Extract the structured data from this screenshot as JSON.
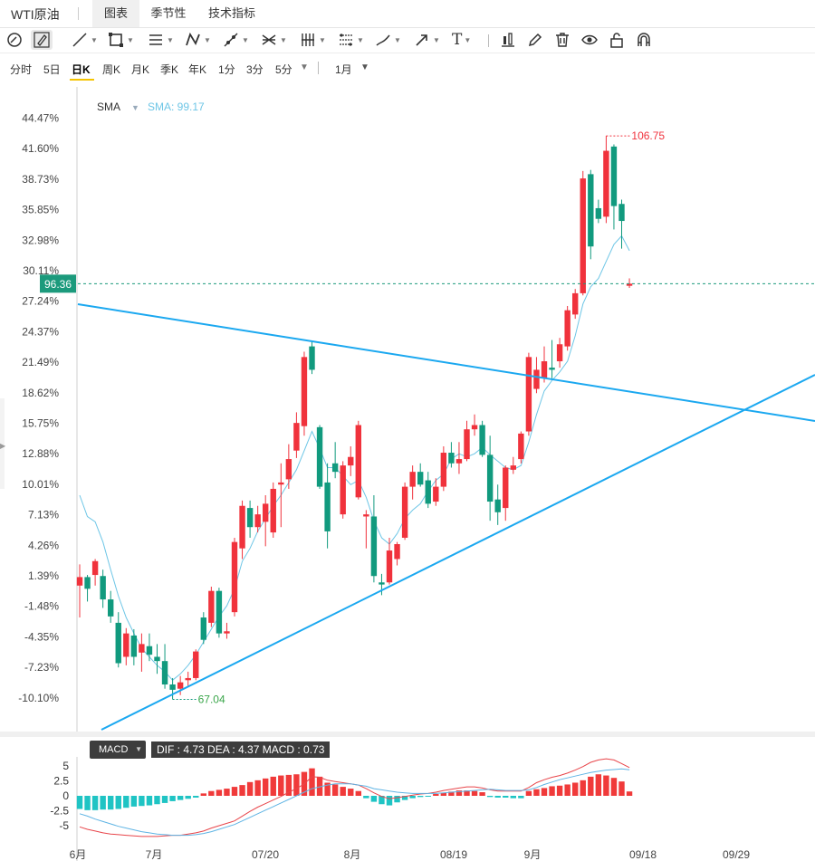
{
  "header": {
    "title": "WTI原油",
    "tabs": [
      {
        "label": "图表",
        "active": true
      },
      {
        "label": "季节性",
        "active": false
      },
      {
        "label": "技术指标",
        "active": false
      }
    ]
  },
  "toolbar": {
    "tools": [
      {
        "icon": "magnet-circle-icon"
      },
      {
        "icon": "pencil-lock-icon"
      },
      {
        "icon": "line-tool-icon"
      },
      {
        "icon": "rectangle-tool-icon"
      },
      {
        "icon": "parallel-lines-tool-icon"
      },
      {
        "icon": "pattern-tool-icon"
      },
      {
        "icon": "path-tool-icon"
      },
      {
        "icon": "cross-lines-tool-icon"
      },
      {
        "icon": "fibonacci-tool-icon"
      },
      {
        "icon": "gann-tool-icon"
      },
      {
        "icon": "brush-tool-icon"
      },
      {
        "icon": "arrow-tool-icon"
      },
      {
        "icon": "text-tool-icon"
      },
      {
        "icon": "candle-style-icon"
      },
      {
        "icon": "edit-icon"
      },
      {
        "icon": "trash-icon"
      },
      {
        "icon": "eye-icon"
      },
      {
        "icon": "unlock-icon"
      },
      {
        "icon": "magnet-icon"
      }
    ],
    "text_tool_label": "T"
  },
  "timeframes": {
    "items": [
      "分时",
      "5日",
      "日K",
      "周K",
      "月K",
      "季K",
      "年K",
      "1分",
      "3分",
      "5分"
    ],
    "active": "日K",
    "range_label": "1月"
  },
  "indicator": {
    "name": "SMA",
    "value_label": "SMA: 99.17"
  },
  "price_axis": {
    "ticks": [
      "44.47%",
      "41.60%",
      "38.73%",
      "35.85%",
      "32.98%",
      "30.11%",
      "27.24%",
      "24.37%",
      "21.49%",
      "18.62%",
      "15.75%",
      "12.88%",
      "10.01%",
      "7.13%",
      "4.26%",
      "1.39%",
      "-1.48%",
      "-4.35%",
      "-7.23%",
      "-10.10%"
    ],
    "current_price_label": "96.36",
    "high_label": "106.75",
    "low_label": "67.04"
  },
  "macd": {
    "tag": "MACD",
    "values_text": "DIF : 4.73  DEA : 4.37  MACD : 0.73",
    "ticks": [
      "5",
      "2.5",
      "0",
      "-2.5",
      "-5"
    ]
  },
  "date_axis": {
    "labels": [
      "6月",
      "7月",
      "07/20",
      "8月",
      "08/19",
      "9月",
      "09/18",
      "09/29"
    ]
  },
  "colors": {
    "up": "#f0323c",
    "down": "#119a7e",
    "trendline": "#1ba8f0",
    "sma": "#6ec6e6",
    "current_price_bg": "#1c9a7c",
    "dif": "#e8454a",
    "dea": "#5fb4e4",
    "macd_pos": "#f03a3a",
    "macd_neg": "#1fc4c4"
  },
  "chart_data": {
    "type": "candlestick",
    "y_axis_unit": "percent change",
    "ylim": [
      -11.5,
      46
    ],
    "high": 106.75,
    "low": 67.04,
    "last": 96.36,
    "sma_last": 99.17,
    "candles": [
      {
        "o": 0.5,
        "h": 2.5,
        "l": -2.5,
        "c": 1.3
      },
      {
        "o": 1.3,
        "h": 1.5,
        "l": -1.0,
        "c": 0.2
      },
      {
        "o": 1.5,
        "h": 3.0,
        "l": 0.5,
        "c": 2.8
      },
      {
        "o": 1.4,
        "h": 2.0,
        "l": -1.6,
        "c": -0.8
      },
      {
        "o": -0.8,
        "h": 0.0,
        "l": -3.0,
        "c": -2.4
      },
      {
        "o": -3.0,
        "h": -2.0,
        "l": -7.2,
        "c": -6.8
      },
      {
        "o": -6.2,
        "h": -3.5,
        "l": -7.0,
        "c": -4.0
      },
      {
        "o": -4.2,
        "h": -3.6,
        "l": -7.0,
        "c": -6.2
      },
      {
        "o": -5.8,
        "h": -4.0,
        "l": -7.6,
        "c": -5.0
      },
      {
        "o": -5.2,
        "h": -4.0,
        "l": -6.6,
        "c": -6.0
      },
      {
        "o": -6.2,
        "h": -5.0,
        "l": -7.8,
        "c": -6.6
      },
      {
        "o": -6.6,
        "h": -5.0,
        "l": -9.2,
        "c": -8.8
      },
      {
        "o": -8.8,
        "h": -8.2,
        "l": -10.2,
        "c": -9.3
      },
      {
        "o": -9.2,
        "h": -8.0,
        "l": -9.8,
        "c": -8.6
      },
      {
        "o": -8.4,
        "h": -7.6,
        "l": -9.0,
        "c": -8.2
      },
      {
        "o": -8.2,
        "h": -5.5,
        "l": -8.4,
        "c": -5.7
      },
      {
        "o": -2.5,
        "h": -2.0,
        "l": -5.0,
        "c": -4.6
      },
      {
        "o": -3.0,
        "h": 0.4,
        "l": -3.4,
        "c": 0.0
      },
      {
        "o": 0.0,
        "h": 0.3,
        "l": -4.4,
        "c": -4.0
      },
      {
        "o": -4.0,
        "h": -3.0,
        "l": -4.5,
        "c": -3.8
      },
      {
        "o": -2.0,
        "h": 5.0,
        "l": -2.4,
        "c": 4.6
      },
      {
        "o": 4.0,
        "h": 8.5,
        "l": 3.0,
        "c": 8.0
      },
      {
        "o": 7.8,
        "h": 8.5,
        "l": 5.0,
        "c": 6.0
      },
      {
        "o": 6.0,
        "h": 8.0,
        "l": 5.5,
        "c": 7.2
      },
      {
        "o": 6.5,
        "h": 9.0,
        "l": 4.2,
        "c": 8.2
      },
      {
        "o": 5.5,
        "h": 10.2,
        "l": 5.0,
        "c": 9.6
      },
      {
        "o": 10.0,
        "h": 12.0,
        "l": 6.0,
        "c": 10.2
      },
      {
        "o": 10.5,
        "h": 13.8,
        "l": 9.6,
        "c": 12.4
      },
      {
        "o": 13.2,
        "h": 16.8,
        "l": 12.5,
        "c": 15.8
      },
      {
        "o": 15.5,
        "h": 22.5,
        "l": 14.6,
        "c": 22.0
      },
      {
        "o": 23.0,
        "h": 23.5,
        "l": 20.4,
        "c": 20.8
      },
      {
        "o": 15.4,
        "h": 15.6,
        "l": 9.6,
        "c": 9.8
      },
      {
        "o": 10.2,
        "h": 12.0,
        "l": 4.0,
        "c": 5.6
      },
      {
        "o": 12.0,
        "h": 14.0,
        "l": 10.6,
        "c": 11.2
      },
      {
        "o": 7.2,
        "h": 12.2,
        "l": 6.8,
        "c": 11.8
      },
      {
        "o": 11.8,
        "h": 13.6,
        "l": 10.8,
        "c": 12.6
      },
      {
        "o": 8.8,
        "h": 16.0,
        "l": 8.6,
        "c": 15.6
      },
      {
        "o": 7.0,
        "h": 7.6,
        "l": 4.0,
        "c": 7.2
      },
      {
        "o": 7.0,
        "h": 9.0,
        "l": 0.8,
        "c": 1.4
      },
      {
        "o": 0.8,
        "h": 1.6,
        "l": -0.4,
        "c": 0.6
      },
      {
        "o": 0.8,
        "h": 5.0,
        "l": 0.6,
        "c": 3.8
      },
      {
        "o": 3.0,
        "h": 4.6,
        "l": 2.4,
        "c": 4.4
      },
      {
        "o": 5.0,
        "h": 10.2,
        "l": 4.8,
        "c": 9.8
      },
      {
        "o": 9.8,
        "h": 11.8,
        "l": 8.6,
        "c": 11.2
      },
      {
        "o": 11.2,
        "h": 12.0,
        "l": 9.8,
        "c": 10.0
      },
      {
        "o": 10.4,
        "h": 11.2,
        "l": 7.8,
        "c": 8.2
      },
      {
        "o": 8.4,
        "h": 10.6,
        "l": 8.0,
        "c": 9.8
      },
      {
        "o": 9.8,
        "h": 13.6,
        "l": 9.4,
        "c": 13.0
      },
      {
        "o": 13.0,
        "h": 14.0,
        "l": 11.6,
        "c": 12.0
      },
      {
        "o": 12.0,
        "h": 14.0,
        "l": 11.0,
        "c": 12.4
      },
      {
        "o": 12.4,
        "h": 16.0,
        "l": 12.2,
        "c": 15.2
      },
      {
        "o": 15.2,
        "h": 16.6,
        "l": 14.6,
        "c": 15.6
      },
      {
        "o": 15.6,
        "h": 16.0,
        "l": 12.6,
        "c": 12.8
      },
      {
        "o": 12.8,
        "h": 14.6,
        "l": 6.6,
        "c": 8.4
      },
      {
        "o": 8.6,
        "h": 10.0,
        "l": 6.2,
        "c": 7.4
      },
      {
        "o": 7.8,
        "h": 11.8,
        "l": 6.6,
        "c": 11.6
      },
      {
        "o": 11.4,
        "h": 12.6,
        "l": 11.0,
        "c": 11.8
      },
      {
        "o": 12.4,
        "h": 15.0,
        "l": 12.0,
        "c": 14.8
      },
      {
        "o": 15.0,
        "h": 22.4,
        "l": 14.6,
        "c": 22.0
      },
      {
        "o": 19.0,
        "h": 22.0,
        "l": 18.6,
        "c": 20.8
      },
      {
        "o": 20.0,
        "h": 23.0,
        "l": 19.6,
        "c": 21.6
      },
      {
        "o": 21.0,
        "h": 23.6,
        "l": 20.0,
        "c": 20.8
      },
      {
        "o": 21.6,
        "h": 23.8,
        "l": 21.0,
        "c": 23.2
      },
      {
        "o": 23.0,
        "h": 26.8,
        "l": 22.6,
        "c": 26.4
      },
      {
        "o": 26.0,
        "h": 28.4,
        "l": 25.6,
        "c": 28.0
      },
      {
        "o": 28.0,
        "h": 39.5,
        "l": 27.8,
        "c": 38.8
      },
      {
        "o": 39.2,
        "h": 39.6,
        "l": 31.2,
        "c": 32.4
      },
      {
        "o": 36.0,
        "h": 36.8,
        "l": 34.6,
        "c": 35.0
      },
      {
        "o": 35.2,
        "h": 42.8,
        "l": 34.6,
        "c": 41.4
      },
      {
        "o": 41.8,
        "h": 42.0,
        "l": 34.0,
        "c": 36.2
      },
      {
        "o": 36.4,
        "h": 36.8,
        "l": 32.2,
        "c": 34.8
      },
      {
        "o": 28.7,
        "h": 29.4,
        "l": 28.5,
        "c": 28.9
      }
    ],
    "sma": [
      9.0,
      7.0,
      6.5,
      4.6,
      2.0,
      -0.5,
      -2.5,
      -4.0,
      -5.4,
      -6.2,
      -7.0,
      -7.6,
      -8.4,
      -7.8,
      -7.0,
      -6.0,
      -4.8,
      -3.6,
      -2.4,
      -1.4,
      0.2,
      2.8,
      4.0,
      5.6,
      6.8,
      8.0,
      9.0,
      10.2,
      11.4,
      13.2,
      15.0,
      13.4,
      11.6,
      11.6,
      10.8,
      10.0,
      10.4,
      8.8,
      6.6,
      5.0,
      4.4,
      5.4,
      6.8,
      7.6,
      8.2,
      9.4,
      10.4,
      11.0,
      12.4,
      12.9,
      12.6,
      12.9,
      13.5,
      12.8,
      12.2,
      11.6,
      11.4,
      11.8,
      14.0,
      16.6,
      18.8,
      19.8,
      20.6,
      21.6,
      24.0,
      27.0,
      28.6,
      29.4,
      31.0,
      32.6,
      33.4,
      32.0
    ],
    "macd_series": {
      "ylim": [
        -6.5,
        6.5
      ],
      "hist": [
        -2.2,
        -2.4,
        -2.4,
        -2.3,
        -2.3,
        -2.2,
        -2.0,
        -1.8,
        -1.7,
        -1.6,
        -1.4,
        -1.2,
        -0.9,
        -0.7,
        -0.5,
        -0.3,
        0.4,
        0.8,
        1.0,
        1.2,
        1.5,
        1.8,
        2.3,
        2.6,
        2.9,
        3.2,
        3.4,
        3.5,
        3.6,
        4.0,
        4.6,
        3.2,
        2.2,
        1.9,
        1.5,
        1.2,
        0.8,
        -0.4,
        -1.0,
        -1.4,
        -1.6,
        -1.1,
        -0.7,
        -0.4,
        -0.2,
        -0.1,
        0.3,
        0.5,
        0.7,
        0.9,
        0.9,
        0.8,
        0.6,
        -0.2,
        -0.3,
        -0.3,
        -0.4,
        -0.4,
        0.8,
        1.1,
        1.3,
        1.6,
        1.7,
        1.9,
        2.2,
        2.6,
        3.2,
        3.6,
        3.4,
        3.0,
        2.4,
        0.73
      ],
      "dif": [
        -5.2,
        -5.6,
        -5.9,
        -6.2,
        -6.4,
        -6.5,
        -6.6,
        -6.7,
        -6.8,
        -6.8,
        -6.8,
        -6.7,
        -6.6,
        -6.6,
        -6.4,
        -6.2,
        -5.9,
        -5.4,
        -5.0,
        -4.6,
        -4.2,
        -3.4,
        -2.6,
        -1.9,
        -1.3,
        -0.7,
        -0.1,
        0.6,
        1.2,
        2.0,
        3.2,
        3.1,
        2.6,
        2.4,
        2.2,
        2.0,
        1.8,
        1.2,
        0.5,
        -0.1,
        -0.5,
        -0.3,
        -0.1,
        0.1,
        0.3,
        0.4,
        0.6,
        0.9,
        1.1,
        1.3,
        1.5,
        1.5,
        1.3,
        1.0,
        0.8,
        0.8,
        0.8,
        0.8,
        1.4,
        2.2,
        2.7,
        3.1,
        3.4,
        3.8,
        4.3,
        4.9,
        5.6,
        6.0,
        6.2,
        6.0,
        5.4,
        4.73
      ],
      "dea": [
        -3.0,
        -3.4,
        -3.9,
        -4.3,
        -4.7,
        -5.1,
        -5.4,
        -5.7,
        -6.0,
        -6.2,
        -6.4,
        -6.5,
        -6.6,
        -6.6,
        -6.6,
        -6.5,
        -6.3,
        -6.0,
        -5.6,
        -5.2,
        -4.8,
        -4.2,
        -3.6,
        -3.0,
        -2.4,
        -1.8,
        -1.2,
        -0.6,
        0.0,
        0.6,
        1.2,
        1.5,
        1.8,
        2.0,
        2.0,
        2.0,
        1.8,
        1.6,
        1.2,
        1.0,
        0.8,
        0.6,
        0.5,
        0.4,
        0.4,
        0.4,
        0.4,
        0.5,
        0.6,
        0.7,
        0.8,
        0.9,
        1.0,
        1.1,
        1.0,
        0.9,
        0.9,
        0.9,
        1.0,
        1.4,
        1.9,
        2.3,
        2.7,
        3.0,
        3.3,
        3.6,
        3.9,
        4.1,
        4.3,
        4.4,
        4.5,
        4.37
      ]
    }
  }
}
